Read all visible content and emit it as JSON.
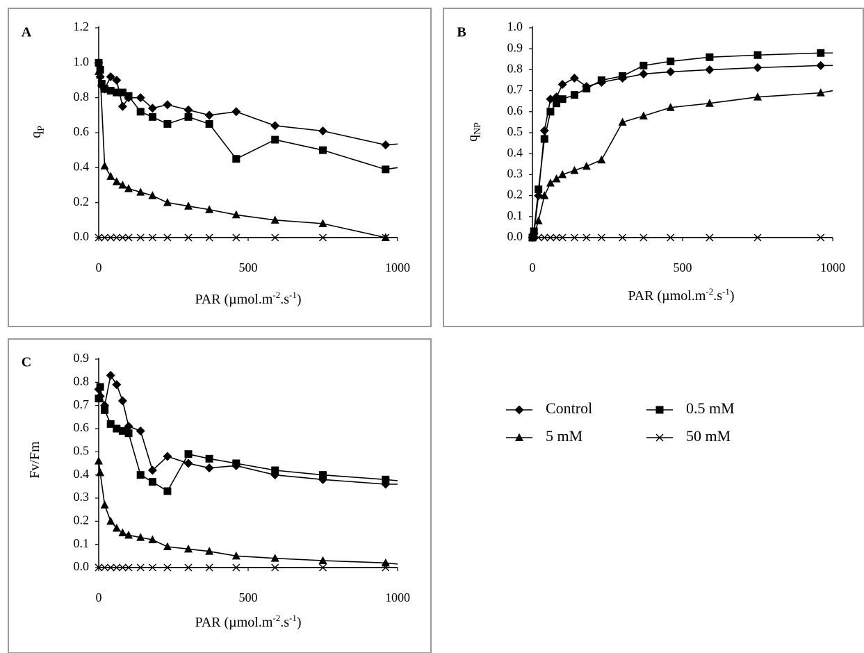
{
  "legend": [
    {
      "label": "Control",
      "marker": "diamond"
    },
    {
      "label": "0.5 mM",
      "marker": "square"
    },
    {
      "label": "5 mM",
      "marker": "triangle"
    },
    {
      "label": "50 mM",
      "marker": "x"
    }
  ],
  "chart_data": [
    {
      "type": "line",
      "panel": "A",
      "title": "",
      "ylabel": "q",
      "ylabel_sub": "P",
      "xlabel": "PAR (µmol.m",
      "xlabel_sup1": "-2",
      "xlabel_mid": ".s",
      "xlabel_sup2": "-1",
      "xlabel_end": ")",
      "xlim": [
        0,
        1000
      ],
      "ylim": [
        0,
        1.2
      ],
      "xticks": [
        0,
        500,
        1000
      ],
      "yticks": [
        "0.0",
        "0.2",
        "0.4",
        "0.6",
        "0.8",
        "1.0",
        "1.2"
      ],
      "grid": false,
      "series": [
        {
          "name": "Control",
          "marker": "diamond",
          "x": [
            0,
            5,
            10,
            20,
            40,
            60,
            80,
            100,
            140,
            180,
            230,
            300,
            370,
            460,
            590,
            750,
            960
          ],
          "y": [
            1.0,
            0.92,
            0.87,
            0.85,
            0.92,
            0.9,
            0.75,
            0.8,
            0.8,
            0.74,
            0.76,
            0.73,
            0.7,
            0.72,
            0.64,
            0.61,
            0.53
          ],
          "line_end": [
            1000,
            0.535
          ]
        },
        {
          "name": "0.5 mM",
          "marker": "square",
          "x": [
            0,
            5,
            10,
            20,
            40,
            60,
            80,
            100,
            140,
            180,
            230,
            300,
            370,
            460,
            590,
            750,
            960
          ],
          "y": [
            1.0,
            0.96,
            0.88,
            0.85,
            0.84,
            0.83,
            0.83,
            0.81,
            0.72,
            0.69,
            0.65,
            0.69,
            0.65,
            0.45,
            0.56,
            0.5,
            0.39
          ],
          "line_end": [
            1000,
            0.4
          ]
        },
        {
          "name": "5 mM",
          "marker": "triangle",
          "x": [
            0,
            5,
            20,
            40,
            60,
            80,
            100,
            140,
            180,
            230,
            300,
            370,
            460,
            590,
            750,
            960
          ],
          "y": [
            0.95,
            0.93,
            0.41,
            0.35,
            0.32,
            0.3,
            0.28,
            0.26,
            0.24,
            0.2,
            0.18,
            0.16,
            0.13,
            0.1,
            0.08,
            0.0
          ],
          "line_end": null
        },
        {
          "name": "50 mM",
          "marker": "x",
          "x": [
            0,
            20,
            40,
            60,
            80,
            100,
            140,
            180,
            230,
            300,
            370,
            460,
            590,
            750,
            960
          ],
          "y": [
            0,
            0,
            0,
            0,
            0,
            0,
            0,
            0,
            0,
            0,
            0,
            0,
            0,
            0,
            0
          ],
          "line_end": [
            1000,
            0
          ]
        }
      ]
    },
    {
      "type": "line",
      "panel": "B",
      "title": "",
      "ylabel": "q",
      "ylabel_sub": "NP",
      "xlabel": "PAR (µmol.m",
      "xlabel_sup1": "-2",
      "xlabel_mid": ".s",
      "xlabel_sup2": "-1",
      "xlabel_end": ")",
      "xlim": [
        0,
        1000
      ],
      "ylim": [
        0,
        1.0
      ],
      "xticks": [
        0,
        500,
        1000
      ],
      "yticks": [
        "0.0",
        "0.1",
        "0.2",
        "0.3",
        "0.4",
        "0.5",
        "0.6",
        "0.7",
        "0.8",
        "0.9",
        "1.0"
      ],
      "grid": false,
      "series": [
        {
          "name": "Control",
          "marker": "diamond",
          "x": [
            0,
            5,
            20,
            40,
            60,
            80,
            100,
            140,
            180,
            230,
            300,
            370,
            460,
            590,
            750,
            960
          ],
          "y": [
            0.0,
            0.02,
            0.2,
            0.51,
            0.66,
            0.67,
            0.73,
            0.76,
            0.72,
            0.74,
            0.76,
            0.78,
            0.79,
            0.8,
            0.81,
            0.82
          ],
          "line_end": [
            1000,
            0.82
          ]
        },
        {
          "name": "0.5 mM",
          "marker": "square",
          "x": [
            0,
            5,
            20,
            40,
            60,
            80,
            100,
            140,
            180,
            230,
            300,
            370,
            460,
            590,
            750,
            960
          ],
          "y": [
            0.0,
            0.03,
            0.23,
            0.47,
            0.6,
            0.64,
            0.66,
            0.68,
            0.71,
            0.75,
            0.77,
            0.82,
            0.84,
            0.86,
            0.87,
            0.88
          ],
          "line_end": [
            1000,
            0.88
          ]
        },
        {
          "name": "5 mM",
          "marker": "triangle",
          "x": [
            0,
            5,
            20,
            40,
            60,
            80,
            100,
            140,
            180,
            230,
            300,
            370,
            460,
            590,
            750,
            960
          ],
          "y": [
            0.0,
            0.01,
            0.08,
            0.2,
            0.26,
            0.28,
            0.3,
            0.32,
            0.34,
            0.37,
            0.55,
            0.58,
            0.62,
            0.64,
            0.67,
            0.69
          ],
          "line_end": [
            1000,
            0.7
          ]
        },
        {
          "name": "50 mM",
          "marker": "x",
          "x": [
            0,
            20,
            40,
            60,
            80,
            100,
            140,
            180,
            230,
            300,
            370,
            460,
            590,
            750,
            960
          ],
          "y": [
            0,
            0,
            0,
            0,
            0,
            0,
            0,
            0,
            0,
            0,
            0,
            0,
            0,
            0,
            0
          ],
          "line_end": [
            1000,
            0
          ]
        }
      ]
    },
    {
      "type": "line",
      "panel": "C",
      "title": "",
      "ylabel": "Fv/Fm",
      "ylabel_sub": "",
      "xlabel": "PAR (µmol.m",
      "xlabel_sup1": "-2",
      "xlabel_mid": ".s",
      "xlabel_sup2": "-1",
      "xlabel_end": ")",
      "xlim": [
        0,
        1000
      ],
      "ylim": [
        0,
        0.9
      ],
      "xticks": [
        0,
        500,
        1000
      ],
      "yticks": [
        "0.0",
        "0.1",
        "0.2",
        "0.3",
        "0.4",
        "0.5",
        "0.6",
        "0.7",
        "0.8",
        "0.9"
      ],
      "grid": false,
      "series": [
        {
          "name": "Control",
          "marker": "diamond",
          "x": [
            0,
            5,
            20,
            40,
            60,
            80,
            100,
            140,
            180,
            230,
            300,
            370,
            460,
            590,
            750,
            960
          ],
          "y": [
            0.77,
            0.74,
            0.7,
            0.83,
            0.79,
            0.72,
            0.61,
            0.59,
            0.42,
            0.48,
            0.45,
            0.43,
            0.44,
            0.4,
            0.38,
            0.36
          ],
          "line_end": [
            1000,
            0.36
          ]
        },
        {
          "name": "0.5 mM",
          "marker": "square",
          "x": [
            0,
            5,
            20,
            40,
            60,
            80,
            100,
            140,
            180,
            230,
            300,
            370,
            460,
            590,
            750,
            960
          ],
          "y": [
            0.73,
            0.78,
            0.68,
            0.62,
            0.6,
            0.59,
            0.58,
            0.4,
            0.37,
            0.33,
            0.49,
            0.47,
            0.45,
            0.42,
            0.4,
            0.38
          ],
          "line_end": [
            1000,
            0.375
          ]
        },
        {
          "name": "5 mM",
          "marker": "triangle",
          "x": [
            0,
            5,
            20,
            40,
            60,
            80,
            100,
            140,
            180,
            230,
            300,
            370,
            460,
            590,
            750,
            960
          ],
          "y": [
            0.46,
            0.41,
            0.27,
            0.2,
            0.17,
            0.15,
            0.14,
            0.13,
            0.12,
            0.09,
            0.08,
            0.07,
            0.05,
            0.04,
            0.03,
            0.02
          ],
          "line_end": [
            1000,
            0.015
          ]
        },
        {
          "name": "50 mM",
          "marker": "x",
          "x": [
            0,
            20,
            40,
            60,
            80,
            100,
            140,
            180,
            230,
            300,
            370,
            460,
            590,
            750,
            960
          ],
          "y": [
            0,
            0,
            0,
            0,
            0,
            0,
            0,
            0,
            0,
            0,
            0,
            0,
            0,
            0,
            0
          ],
          "line_end": [
            1000,
            0
          ]
        }
      ]
    }
  ]
}
